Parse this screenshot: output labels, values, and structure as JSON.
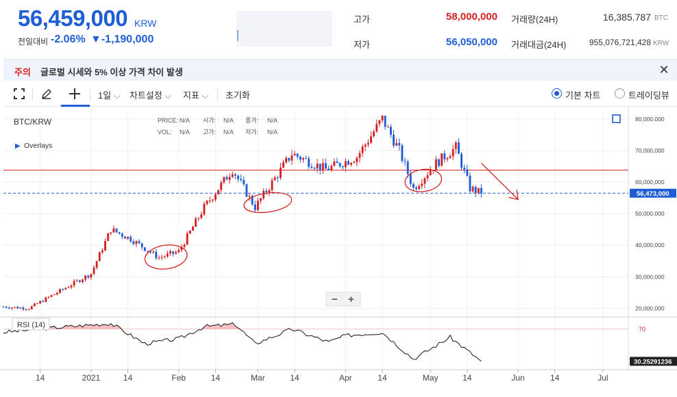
{
  "header": {
    "price": "56,459,000",
    "price_unit": "KRW",
    "change_label": "전일대비",
    "change_pct": "-2.06%",
    "change_abs": "▼-1,190,000",
    "high_label": "고가",
    "high_value": "58,000,000",
    "low_label": "저가",
    "low_value": "56,050,000",
    "volume_label": "거래량(24H)",
    "volume_value": "16,385.787",
    "volume_unit": "BTC",
    "amount_label": "거래대금(24H)",
    "amount_value": "955,076,721,428",
    "amount_unit": "KRW",
    "colors": {
      "up": "#d22222",
      "down": "#1f5dd6"
    }
  },
  "notice": {
    "tag": "주의",
    "text": "글로벌 시세와 5% 이상 가격 차이 발생",
    "close_icon": "close-icon"
  },
  "toolbar": {
    "period": "1일",
    "chart_settings": "차트설정",
    "indicators": "지표",
    "reset": "초기화",
    "basic_chart": "기본 차트",
    "tradingview": "트레이딩뷰",
    "icons": [
      "fullscreen-icon",
      "pencil-icon",
      "crosshair-icon"
    ]
  },
  "chart_data": {
    "type": "candlestick",
    "symbol": "BTC/KRW",
    "overlays_label": "Overlays",
    "info": {
      "price_label": "PRICE:",
      "price_value": "N/A",
      "open_label": "시가:",
      "open_value": "N/A",
      "high_label": "종가:",
      "high_value": "N/A",
      "vol_label": "VOL:",
      "vol_value": "N/A",
      "hi_label": "고가:",
      "hi_value": "N/A",
      "lo_label": "저가:",
      "lo_value": "N/A"
    },
    "y_ticks": [
      "80,000,000",
      "70,000,000",
      "60,000,000",
      "50,000,000",
      "40,000,000",
      "30,000,000",
      "20,000,000"
    ],
    "y_tick_values": [
      80000000,
      70000000,
      60000000,
      50000000,
      40000000,
      30000000,
      20000000
    ],
    "ylim": [
      17700000,
      83000000
    ],
    "x_ticks": [
      "14",
      "2021",
      "14",
      "Feb",
      "14",
      "Mar",
      "14",
      "Apr",
      "14",
      "May",
      "14",
      "Jun",
      "14",
      "Jul"
    ],
    "x_tick_dates": [
      "2020-12-14",
      "2021-01-01",
      "2021-01-14",
      "2021-02-01",
      "2021-02-14",
      "2021-03-01",
      "2021-03-14",
      "2021-04-01",
      "2021-04-14",
      "2021-05-01",
      "2021-05-14",
      "2021-06-01",
      "2021-06-14",
      "2021-07-01"
    ],
    "x_range": [
      "2020-12-01",
      "2021-07-10"
    ],
    "current_price_label": "56,473,000",
    "current_price": 56473000,
    "resistance_level": 63800000,
    "key_points": [
      {
        "date": "2020-12-01",
        "close": 20500000
      },
      {
        "date": "2020-12-10",
        "close": 20000000
      },
      {
        "date": "2020-12-20",
        "close": 25000000
      },
      {
        "date": "2021-01-01",
        "close": 31000000
      },
      {
        "date": "2021-01-08",
        "close": 45000000
      },
      {
        "date": "2021-01-15",
        "close": 42000000
      },
      {
        "date": "2021-01-25",
        "close": 36000000
      },
      {
        "date": "2021-02-01",
        "close": 38000000
      },
      {
        "date": "2021-02-10",
        "close": 52000000
      },
      {
        "date": "2021-02-20",
        "close": 64000000
      },
      {
        "date": "2021-02-28",
        "close": 52000000
      },
      {
        "date": "2021-03-13",
        "close": 69000000
      },
      {
        "date": "2021-03-25",
        "close": 64000000
      },
      {
        "date": "2021-04-05",
        "close": 68000000
      },
      {
        "date": "2021-04-14",
        "close": 80000000
      },
      {
        "date": "2021-04-20",
        "close": 70000000
      },
      {
        "date": "2021-04-25",
        "close": 58000000
      },
      {
        "date": "2021-05-03",
        "close": 66000000
      },
      {
        "date": "2021-05-10",
        "close": 71000000
      },
      {
        "date": "2021-05-15",
        "close": 58000000
      },
      {
        "date": "2021-05-19",
        "close": 56473000
      }
    ],
    "rsi": {
      "label": "RSI (14)",
      "level_label": "70",
      "current_label": "30.25291236",
      "current": 30.25291236,
      "ylim": [
        20,
        85
      ],
      "level": 70,
      "key_points": [
        {
          "date": "2020-12-01",
          "value": 66
        },
        {
          "date": "2020-12-20",
          "value": 72
        },
        {
          "date": "2021-01-08",
          "value": 77
        },
        {
          "date": "2021-01-20",
          "value": 52
        },
        {
          "date": "2021-02-01",
          "value": 58
        },
        {
          "date": "2021-02-10",
          "value": 73
        },
        {
          "date": "2021-02-21",
          "value": 76
        },
        {
          "date": "2021-02-28",
          "value": 52
        },
        {
          "date": "2021-03-13",
          "value": 70
        },
        {
          "date": "2021-03-26",
          "value": 54
        },
        {
          "date": "2021-04-01",
          "value": 62
        },
        {
          "date": "2021-04-14",
          "value": 66
        },
        {
          "date": "2021-04-25",
          "value": 33
        },
        {
          "date": "2021-05-08",
          "value": 60
        },
        {
          "date": "2021-05-19",
          "value": 30.25
        }
      ]
    },
    "zoom_controls": [
      "−",
      "+"
    ],
    "color_up": "#d22222",
    "color_down": "#1f5dd6"
  }
}
